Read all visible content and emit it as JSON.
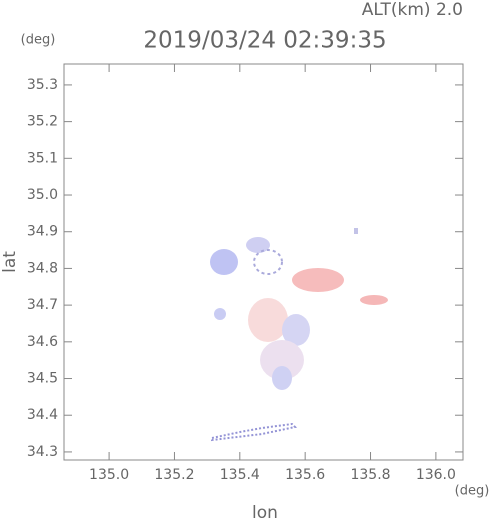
{
  "chart_data": {
    "type": "map",
    "subtitle": "ALT(km) 2.0",
    "title": "2019/03/24 02:39:35",
    "y_unit": "(deg)",
    "x_unit": "(deg)",
    "xlabel": "lon",
    "ylabel": "lat",
    "xlim": [
      134.862,
      136.083
    ],
    "ylim": [
      34.278,
      35.357
    ],
    "xticks": [
      {
        "value": 135.0,
        "label": "135.0"
      },
      135.2,
      135.4,
      135.6,
      135.8,
      {
        "value": 136.0,
        "label": "136.0"
      }
    ],
    "yticks": [
      35.3,
      35.2,
      35.1,
      {
        "value": 35.0,
        "label": "35.0"
      },
      34.9,
      34.8,
      34.7,
      34.6,
      34.5,
      34.4,
      34.3
    ]
  }
}
